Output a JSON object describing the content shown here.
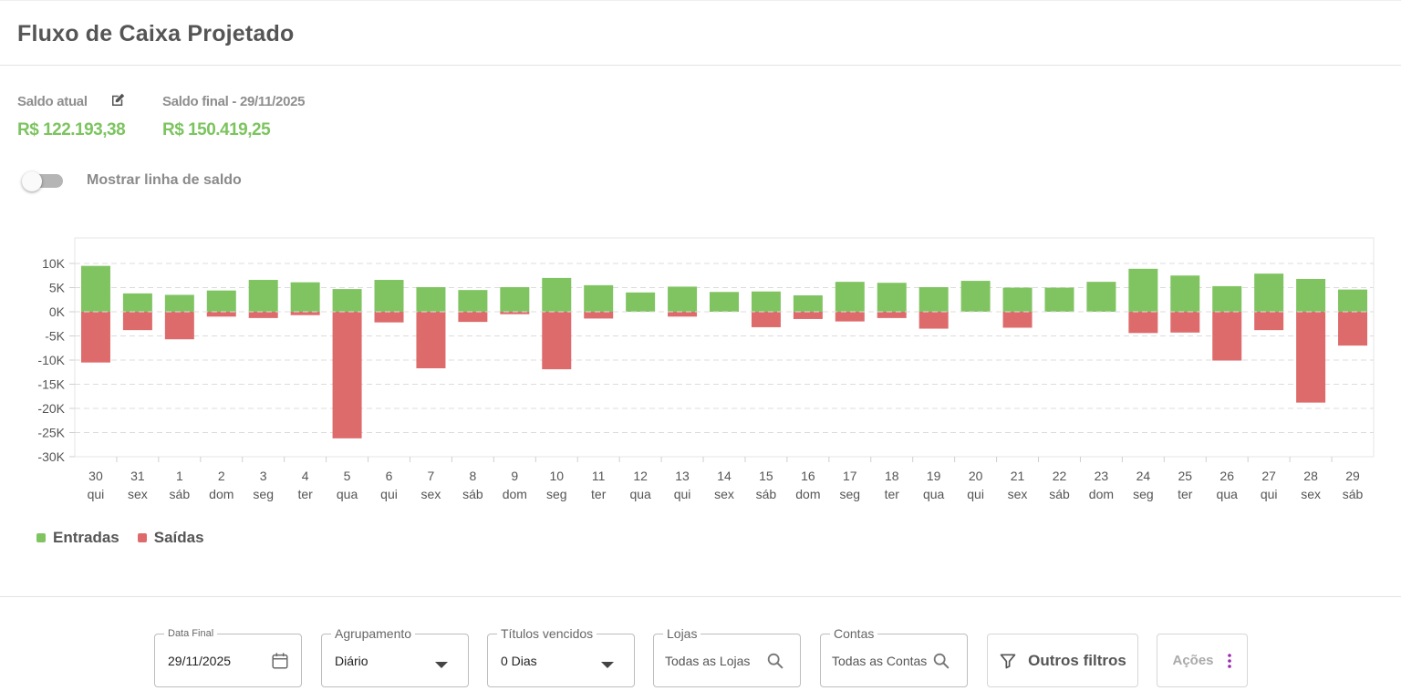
{
  "header": {
    "title": "Fluxo de Caixa Projetado"
  },
  "balances": {
    "current_label": "Saldo atual",
    "current_value": "R$ 122.193,38",
    "final_label": "Saldo final - 29/11/2025",
    "final_value": "R$ 150.419,25"
  },
  "toggle": {
    "label": "Mostrar linha de saldo",
    "checked": false
  },
  "colors": {
    "entradas": "#80c462",
    "saidas": "#de6b6c",
    "accent_green": "#7cc45f",
    "actions_dots": "#9c27b0"
  },
  "legend": {
    "entradas": "Entradas",
    "saidas": "Saídas"
  },
  "chart_data": {
    "type": "bar",
    "stacked": true,
    "categories": [
      "30",
      "31",
      "1",
      "2",
      "3",
      "4",
      "5",
      "6",
      "7",
      "8",
      "9",
      "10",
      "11",
      "12",
      "13",
      "14",
      "15",
      "16",
      "17",
      "18",
      "19",
      "20",
      "21",
      "22",
      "23",
      "24",
      "25",
      "26",
      "27",
      "28",
      "29"
    ],
    "weekdays": [
      "qui",
      "sex",
      "sáb",
      "dom",
      "seg",
      "ter",
      "qua",
      "qui",
      "sex",
      "sáb",
      "dom",
      "seg",
      "ter",
      "qua",
      "qui",
      "sex",
      "sáb",
      "dom",
      "seg",
      "ter",
      "qua",
      "qui",
      "sex",
      "sáb",
      "dom",
      "seg",
      "ter",
      "qua",
      "qui",
      "sex",
      "sáb"
    ],
    "series": [
      {
        "name": "Entradas",
        "values": [
          9500,
          3800,
          3500,
          4400,
          6600,
          6100,
          4700,
          6600,
          5100,
          4500,
          5100,
          7000,
          5500,
          4000,
          5200,
          4100,
          4200,
          3400,
          6200,
          6000,
          5100,
          6400,
          5000,
          5000,
          6200,
          8900,
          7500,
          5300,
          7900,
          6800,
          4600
        ]
      },
      {
        "name": "Saídas",
        "values": [
          -10500,
          -3800,
          -5700,
          -1000,
          -1300,
          -700,
          -26200,
          -2200,
          -11700,
          -2100,
          -500,
          -11900,
          -1400,
          0,
          -1000,
          0,
          -3200,
          -1500,
          -2000,
          -1300,
          -3500,
          0,
          -3300,
          0,
          0,
          -4400,
          -4300,
          -10100,
          -3800,
          -18800,
          -7000
        ]
      }
    ],
    "yticks": [
      "10K",
      "5K",
      "0K",
      "-5K",
      "-10K",
      "-15K",
      "-20K",
      "-25K",
      "-30K"
    ],
    "ylim": [
      -30000,
      12500
    ],
    "grid": true,
    "legend_position": "bottom-left"
  },
  "filters": {
    "data_final": {
      "label": "Data Final",
      "value": "29/11/2025"
    },
    "agrupamento": {
      "label": "Agrupamento",
      "value": "Diário"
    },
    "titulos": {
      "label": "Títulos vencidos",
      "value": "0 Dias"
    },
    "lojas": {
      "label": "Lojas",
      "value": "Todas as Lojas"
    },
    "contas": {
      "label": "Contas",
      "value": "Todas as Contas"
    }
  },
  "buttons": {
    "outros_filtros": "Outros filtros",
    "acoes": "Ações"
  },
  "icons": {
    "edit": "edit-icon",
    "calendar": "calendar-icon",
    "search": "search-icon",
    "filter": "filter-icon",
    "more": "more-vertical-icon"
  }
}
